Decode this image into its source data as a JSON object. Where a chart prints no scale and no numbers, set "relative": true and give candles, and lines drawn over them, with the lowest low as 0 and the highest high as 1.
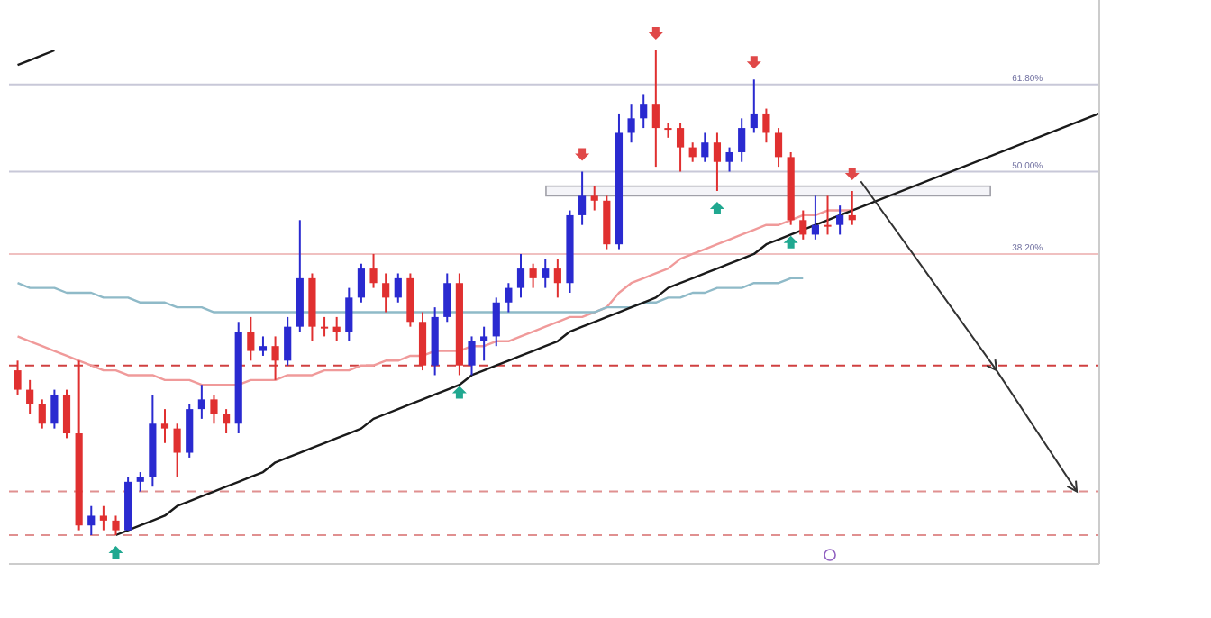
{
  "chart_data": {
    "type": "candlestick",
    "relative": true,
    "categories": [
      null,
      null,
      null,
      null,
      null,
      null,
      null,
      null,
      null,
      null,
      null,
      null,
      null,
      null,
      null,
      null,
      null,
      null,
      null,
      null,
      null,
      null,
      null,
      null,
      null,
      null,
      null,
      null,
      null,
      null,
      null,
      null,
      null,
      null,
      null,
      null,
      null,
      null,
      null,
      null,
      null,
      null,
      null,
      null,
      null,
      null,
      null,
      null,
      null,
      null,
      null,
      null,
      null,
      null,
      null,
      null,
      null,
      null,
      null,
      null,
      null,
      null,
      null,
      null,
      null,
      null,
      null,
      null,
      null
    ],
    "ohlc": [
      [
        0.34,
        0.36,
        0.29,
        0.3
      ],
      [
        0.3,
        0.32,
        0.25,
        0.27
      ],
      [
        0.27,
        0.28,
        0.22,
        0.23
      ],
      [
        0.23,
        0.3,
        0.22,
        0.29
      ],
      [
        0.29,
        0.3,
        0.2,
        0.21
      ],
      [
        0.21,
        0.36,
        0.01,
        0.02
      ],
      [
        0.02,
        0.06,
        0.0,
        0.04
      ],
      [
        0.04,
        0.06,
        0.01,
        0.03
      ],
      [
        0.03,
        0.04,
        0,
        0.01
      ],
      [
        0.01,
        0.12,
        0.01,
        0.11
      ],
      [
        0.11,
        0.13,
        0.09,
        0.12
      ],
      [
        0.12,
        0.29,
        0.1,
        0.23
      ],
      [
        0.23,
        0.26,
        0.19,
        0.22
      ],
      [
        0.22,
        0.23,
        0.12,
        0.17
      ],
      [
        0.17,
        0.27,
        0.16,
        0.26
      ],
      [
        0.26,
        0.31,
        0.24,
        0.28
      ],
      [
        0.28,
        0.29,
        0.23,
        0.25
      ],
      [
        0.25,
        0.26,
        0.21,
        0.23
      ],
      [
        0.23,
        0.44,
        0.21,
        0.42
      ],
      [
        0.42,
        0.45,
        0.36,
        0.38
      ],
      [
        0.38,
        0.41,
        0.37,
        0.39
      ],
      [
        0.39,
        0.41,
        0.32,
        0.36
      ],
      [
        0.36,
        0.45,
        0.35,
        0.43
      ],
      [
        0.43,
        0.65,
        0.42,
        0.53
      ],
      [
        0.53,
        0.54,
        0.4,
        0.43
      ],
      [
        0.43,
        0.45,
        0.41,
        0.43
      ],
      [
        0.43,
        0.45,
        0.4,
        0.42
      ],
      [
        0.42,
        0.51,
        0.4,
        0.49
      ],
      [
        0.49,
        0.56,
        0.48,
        0.55
      ],
      [
        0.55,
        0.58,
        0.51,
        0.52
      ],
      [
        0.52,
        0.54,
        0.46,
        0.49
      ],
      [
        0.49,
        0.54,
        0.48,
        0.53
      ],
      [
        0.53,
        0.54,
        0.43,
        0.44
      ],
      [
        0.44,
        0.46,
        0.34,
        0.35
      ],
      [
        0.35,
        0.47,
        0.33,
        0.45
      ],
      [
        0.45,
        0.54,
        0.44,
        0.52
      ],
      [
        0.52,
        0.54,
        0.33,
        0.35
      ],
      [
        0.35,
        0.41,
        0.33,
        0.4
      ],
      [
        0.4,
        0.43,
        0.36,
        0.41
      ],
      [
        0.41,
        0.49,
        0.39,
        0.48
      ],
      [
        0.48,
        0.52,
        0.46,
        0.51
      ],
      [
        0.51,
        0.58,
        0.49,
        0.55
      ],
      [
        0.55,
        0.56,
        0.51,
        0.53
      ],
      [
        0.53,
        0.57,
        0.51,
        0.55
      ],
      [
        0.55,
        0.57,
        0.49,
        0.52
      ],
      [
        0.52,
        0.67,
        0.5,
        0.66
      ],
      [
        0.66,
        0.75,
        0.64,
        0.7
      ],
      [
        0.7,
        0.72,
        0.67,
        0.69
      ],
      [
        0.69,
        0.7,
        0.59,
        0.6
      ],
      [
        0.6,
        0.87,
        0.59,
        0.83
      ],
      [
        0.83,
        0.89,
        0.81,
        0.86
      ],
      [
        0.86,
        0.91,
        0.84,
        0.89
      ],
      [
        0.89,
        1,
        0.76,
        0.84
      ],
      [
        0.84,
        0.85,
        0.82,
        0.84
      ],
      [
        0.84,
        0.85,
        0.75,
        0.8
      ],
      [
        0.8,
        0.81,
        0.77,
        0.78
      ],
      [
        0.78,
        0.83,
        0.77,
        0.81
      ],
      [
        0.81,
        0.83,
        0.71,
        0.77
      ],
      [
        0.77,
        0.8,
        0.75,
        0.79
      ],
      [
        0.79,
        0.86,
        0.77,
        0.84
      ],
      [
        0.84,
        0.94,
        0.83,
        0.87
      ],
      [
        0.87,
        0.88,
        0.81,
        0.83
      ],
      [
        0.83,
        0.84,
        0.76,
        0.78
      ],
      [
        0.78,
        0.79,
        0.64,
        0.65
      ],
      [
        0.65,
        0.67,
        0.61,
        0.62
      ],
      [
        0.62,
        0.7,
        0.61,
        0.64
      ],
      [
        0.64,
        0.7,
        0.62,
        0.64
      ],
      [
        0.64,
        0.68,
        0.62,
        0.66
      ],
      [
        0.66,
        0.71,
        0.64,
        0.65
      ]
    ],
    "colors": [
      "#e03030",
      "#e03030",
      "#e03030",
      "#2a2ad0",
      "#e03030",
      "#e03030",
      "#2a2ad0",
      "#e03030",
      "#e03030",
      "#2a2ad0",
      "#2a2ad0",
      "#2a2ad0",
      "#e03030",
      "#e03030",
      "#2a2ad0",
      "#2a2ad0",
      "#e03030",
      "#e03030",
      "#2a2ad0",
      "#e03030",
      "#2a2ad0",
      "#e03030",
      "#2a2ad0",
      "#2a2ad0",
      "#e03030",
      "#e03030",
      "#e03030",
      "#2a2ad0",
      "#2a2ad0",
      "#e03030",
      "#e03030",
      "#2a2ad0",
      "#e03030",
      "#e03030",
      "#2a2ad0",
      "#2a2ad0",
      "#e03030",
      "#2a2ad0",
      "#2a2ad0",
      "#2a2ad0",
      "#2a2ad0",
      "#2a2ad0",
      "#e03030",
      "#2a2ad0",
      "#e03030",
      "#2a2ad0",
      "#2a2ad0",
      "#e03030",
      "#e03030",
      "#2a2ad0",
      "#2a2ad0",
      "#2a2ad0",
      "#e03030",
      "#e03030",
      "#e03030",
      "#e03030",
      "#2a2ad0",
      "#e03030",
      "#2a2ad0",
      "#2a2ad0",
      "#2a2ad0",
      "#e03030",
      "#e03030",
      "#e03030",
      "#e03030",
      "#2a2ad0",
      "#e03030",
      "#2a2ad0",
      "#e03030"
    ],
    "series": [
      {
        "type": "line",
        "color": "#f09a9a",
        "values": [
          0.41,
          0.4,
          0.39,
          0.38,
          0.37,
          0.36,
          0.35,
          0.34,
          0.34,
          0.33,
          0.33,
          0.33,
          0.32,
          0.32,
          0.32,
          0.31,
          0.31,
          0.31,
          0.31,
          0.32,
          0.32,
          0.32,
          0.33,
          0.33,
          0.33,
          0.34,
          0.34,
          0.34,
          0.35,
          0.35,
          0.36,
          0.36,
          0.37,
          0.37,
          0.38,
          0.38,
          0.38,
          0.39,
          0.39,
          0.4,
          0.4,
          0.41,
          0.42,
          0.43,
          0.44,
          0.45,
          0.45,
          0.46,
          0.47,
          0.5,
          0.52,
          0.53,
          0.54,
          0.55,
          0.57,
          0.58,
          0.59,
          0.6,
          0.61,
          0.62,
          0.63,
          0.64,
          0.64,
          0.65,
          0.66,
          0.66,
          0.67,
          0.67,
          0.67
        ]
      },
      {
        "type": "line",
        "color": "#8fbac8",
        "values": [
          0.52,
          0.51,
          0.51,
          0.51,
          0.5,
          0.5,
          0.5,
          0.49,
          0.49,
          0.49,
          0.48,
          0.48,
          0.48,
          0.47,
          0.47,
          0.47,
          0.46,
          0.46,
          0.46,
          0.46,
          0.46,
          0.46,
          0.46,
          0.46,
          0.46,
          0.46,
          0.46,
          0.46,
          0.46,
          0.46,
          0.46,
          0.46,
          0.46,
          0.46,
          0.46,
          0.46,
          0.46,
          0.46,
          0.46,
          0.46,
          0.46,
          0.46,
          0.46,
          0.46,
          0.46,
          0.46,
          0.46,
          0.46,
          0.47,
          0.47,
          0.47,
          0.48,
          0.48,
          0.49,
          0.49,
          0.5,
          0.5,
          0.51,
          0.51,
          0.51,
          0.52,
          0.52,
          0.52,
          0.53,
          0.53,
          null,
          null,
          null,
          null
        ]
      },
      {
        "type": "line",
        "color": "#1a1a1a",
        "values": [
          null,
          null,
          null,
          null,
          null,
          null,
          null,
          null,
          0,
          0.01,
          0.02,
          0.03,
          0.04,
          0.06,
          0.07,
          0.08,
          0.09,
          0.1,
          0.11,
          0.12,
          0.13,
          0.15,
          0.16,
          0.17,
          0.18,
          0.19,
          0.2,
          0.21,
          0.22,
          0.24,
          0.25,
          0.26,
          0.27,
          0.28,
          0.29,
          0.3,
          0.31,
          0.33,
          0.34,
          0.35,
          0.36,
          0.37,
          0.38,
          0.39,
          0.4,
          0.42,
          0.43,
          0.44,
          0.45,
          0.46,
          0.47,
          0.48,
          0.49,
          0.51,
          0.52,
          0.53,
          0.54,
          0.55,
          0.56,
          0.57,
          0.58,
          0.6,
          0.61,
          0.62,
          0.63,
          0.64,
          0.65,
          0.66,
          0.67
        ]
      },
      {
        "type": "line",
        "color": "#1a1a1a",
        "values": [
          0.97,
          0.98,
          0.99,
          1,
          null,
          null,
          null,
          null,
          null,
          null,
          null,
          null,
          null,
          null,
          null,
          null,
          null,
          null,
          null,
          null,
          null,
          null,
          null,
          null,
          null,
          null,
          null,
          null,
          null,
          null,
          null,
          null,
          null,
          null,
          null,
          null,
          null,
          null,
          null,
          null,
          null,
          null,
          null,
          null,
          null,
          null,
          null,
          null,
          null,
          null,
          null,
          null,
          null,
          null,
          null,
          null,
          null,
          null,
          null,
          null,
          null,
          null,
          null,
          null,
          null,
          null,
          null,
          null,
          null
        ]
      }
    ],
    "ref_lines": [
      {
        "axis": "y",
        "value": 0.93,
        "color": "#c8c8d8",
        "line_style": "solid"
      },
      {
        "axis": "y",
        "value": 0.75,
        "color": "#c8c8d8",
        "line_style": "solid"
      },
      {
        "axis": "y",
        "value": 0.58,
        "color": "#f0c0c0",
        "line_style": "solid"
      },
      {
        "axis": "y",
        "value": 0.35,
        "color": "#d04040",
        "line_style": "dashed"
      },
      {
        "axis": "y",
        "value": 0.09,
        "color": "#e09090",
        "line_style": "dashed"
      },
      {
        "axis": "y",
        "value": 0.0,
        "color": "#e09090",
        "line_style": "dashed"
      }
    ],
    "annotations": [
      {
        "text": "61.80%",
        "y": 0.93
      },
      {
        "text": "50.00%",
        "y": 0.75
      },
      {
        "text": "38.20%",
        "y": 0.58
      }
    ],
    "bands": [
      {
        "axis": "y",
        "from": 0.7,
        "to": 0.72,
        "color": "#f4f4f8"
      }
    ]
  }
}
